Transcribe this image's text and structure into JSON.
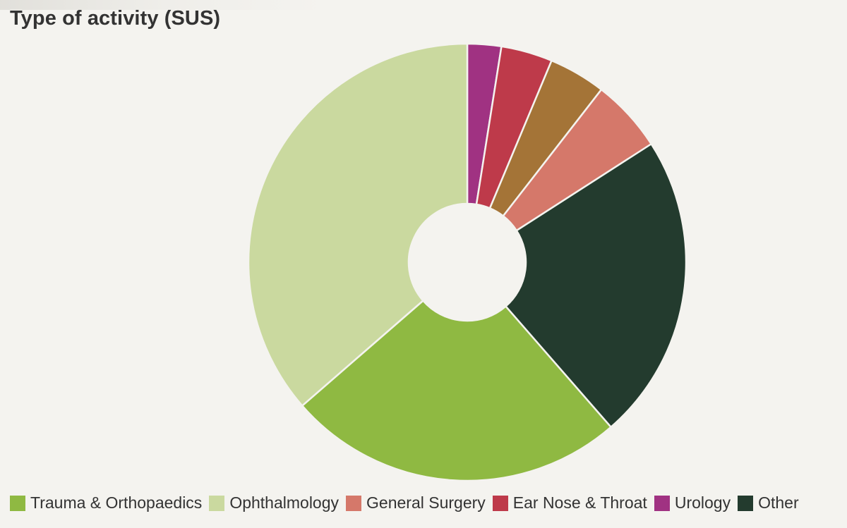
{
  "chart_data": {
    "type": "pie",
    "title": "Type of activity (SUS)",
    "subtitle": "",
    "legend_position": "bottom-left",
    "donut": true,
    "slices": [
      {
        "label": "Urology",
        "value": 2.5,
        "color": "#a03282",
        "in_legend": true
      },
      {
        "label": "Ear Nose & Throat",
        "value": 3.8,
        "color": "#be3a4a",
        "in_legend": true
      },
      {
        "label": "",
        "value": 4.2,
        "color": "#a47437",
        "in_legend": false
      },
      {
        "label": "General Surgery",
        "value": 5.4,
        "color": "#d5786a",
        "in_legend": true
      },
      {
        "label": "Other",
        "value": 22.7,
        "color": "#233b2e",
        "in_legend": true
      },
      {
        "label": "Trauma & Orthopaedics",
        "value": 25.0,
        "color": "#8fb942",
        "in_legend": true
      },
      {
        "label": "Ophthalmology",
        "value": 36.4,
        "color": "#cad99f",
        "in_legend": true
      }
    ],
    "legend": [
      {
        "label": "Trauma & Orthopaedics",
        "color": "#8fb942"
      },
      {
        "label": "Ophthalmology",
        "color": "#cad99f"
      },
      {
        "label": "General Surgery",
        "color": "#d5786a"
      },
      {
        "label": "Ear Nose & Throat",
        "color": "#be3a4a"
      },
      {
        "label": "Urology",
        "color": "#a03282"
      },
      {
        "label": "Other",
        "color": "#233b2e"
      }
    ]
  }
}
